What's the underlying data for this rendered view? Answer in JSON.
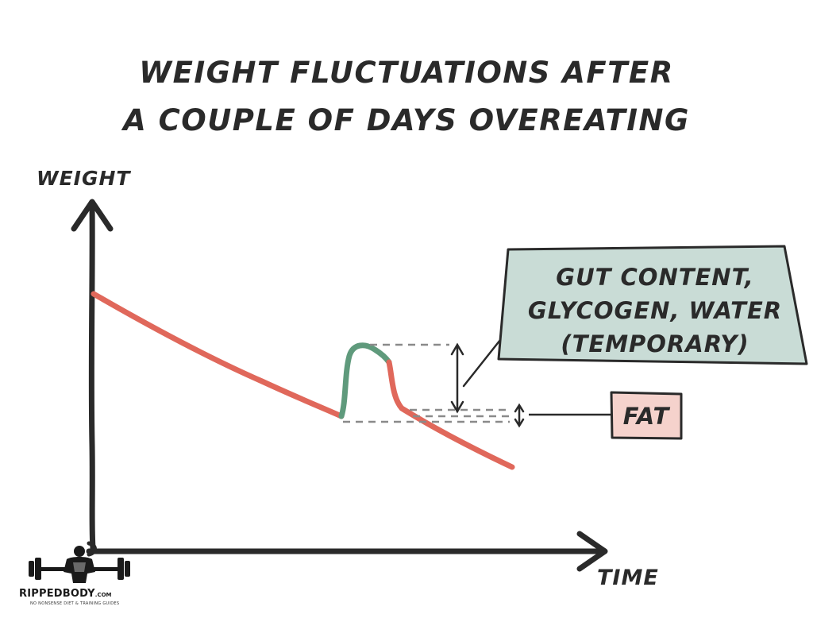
{
  "title": {
    "line1": "Weight fluctuations after",
    "line2": "a couple of days overeating"
  },
  "axes": {
    "y_label": "Weight",
    "x_label": "Time"
  },
  "callouts": {
    "temporary": {
      "line1": "Gut content,",
      "line2": "glycogen, water",
      "line3": "(temporary)",
      "fill": "#c9dcd6"
    },
    "fat": {
      "label": "Fat",
      "fill": "#f5d2cc"
    }
  },
  "colors": {
    "trend_line": "#e0685b",
    "spike_line": "#5f9a7c",
    "ink": "#2a2a2a",
    "dashed": "#8a8a8a"
  },
  "logo": {
    "name": "RippedBody",
    "suffix": ".com",
    "tagline": "No nonsense diet & training guides"
  }
}
